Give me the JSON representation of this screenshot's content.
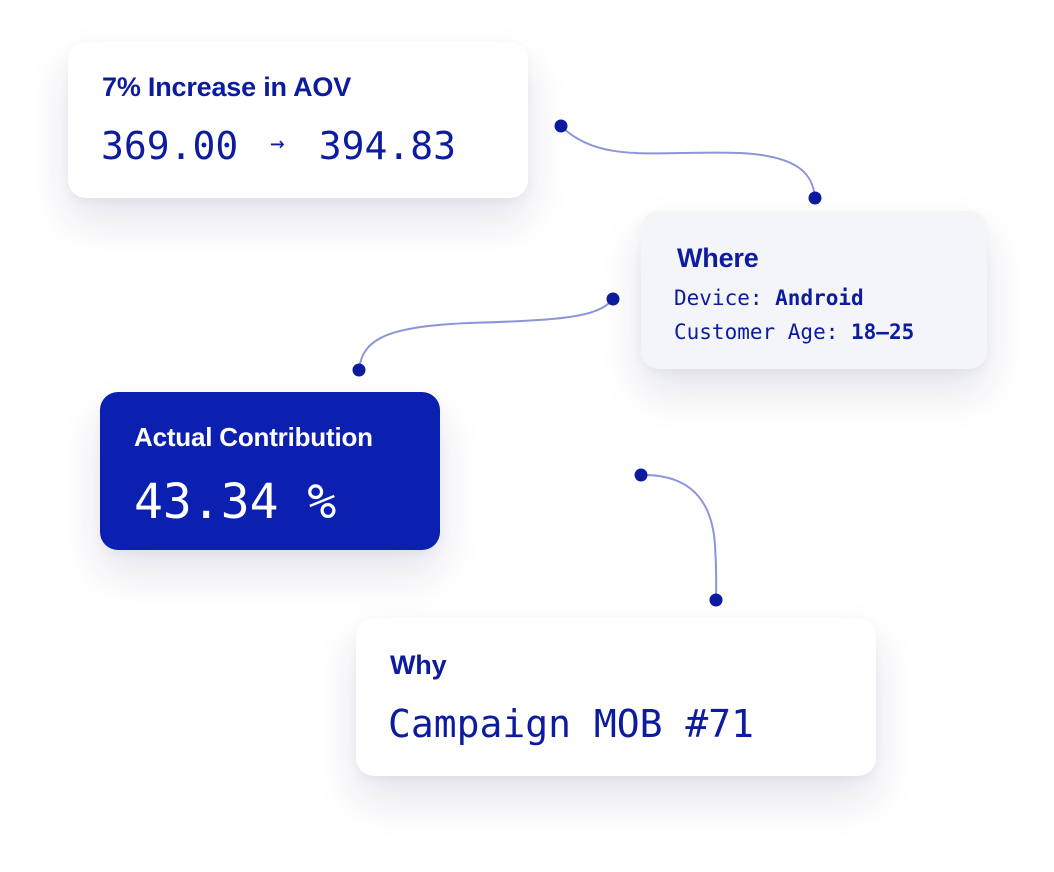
{
  "aov": {
    "title": "7% Increase in AOV",
    "from": "369.00",
    "arrow": "→",
    "to": "394.83"
  },
  "where": {
    "title": "Where",
    "device_label": "Device: ",
    "device_value": "Android",
    "age_label": "Customer Age: ",
    "age_value": "18–25"
  },
  "contribution": {
    "title": "Actual Contribution",
    "value": "43.34 %"
  },
  "why": {
    "title": "Why",
    "value": "Campaign MOB #71"
  },
  "colors": {
    "accent": "#0d1b9e",
    "card_blue": "#0b1fb0",
    "connector_line": "#8d95da",
    "card_gray": "#f4f5f9"
  }
}
